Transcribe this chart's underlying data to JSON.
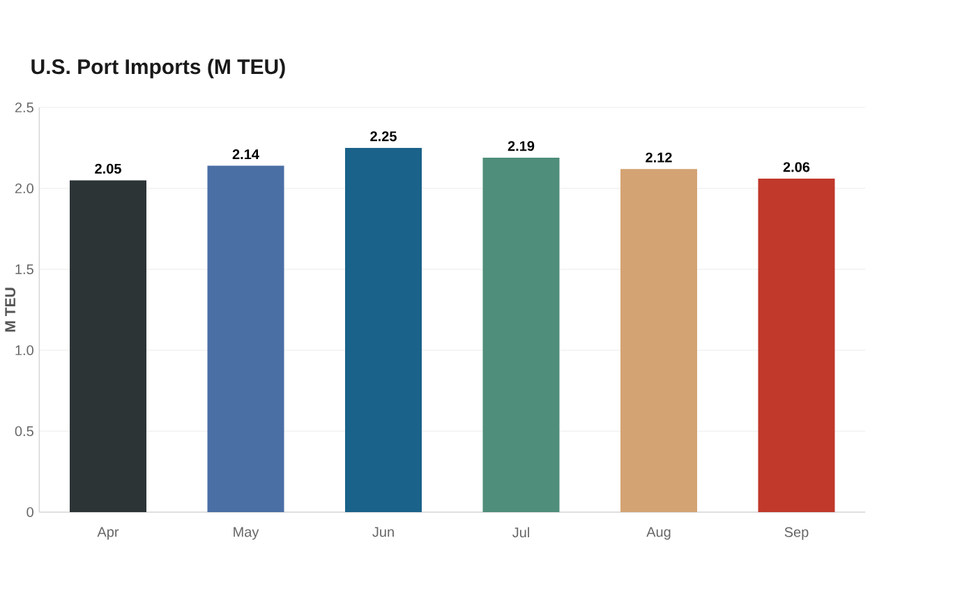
{
  "chart_data": {
    "type": "bar",
    "title": "U.S. Port Imports (M TEU)",
    "ylabel": "M TEU",
    "categories": [
      "Apr",
      "May",
      "Jun",
      "Jul",
      "Aug",
      "Sep"
    ],
    "values": [
      2.05,
      2.14,
      2.25,
      2.19,
      2.12,
      2.06
    ],
    "colors": [
      "#2d3436",
      "#4a6fa5",
      "#1a6289",
      "#4f8e7b",
      "#d4a373",
      "#c0392b"
    ],
    "ylim": [
      0,
      2.5
    ],
    "yticks": [
      0,
      0.5,
      {
        "value": 1,
        "label": "1.0"
      },
      1.5,
      {
        "value": 2,
        "label": "2.0"
      },
      2.5
    ],
    "grid": "y",
    "data_labels": true
  }
}
